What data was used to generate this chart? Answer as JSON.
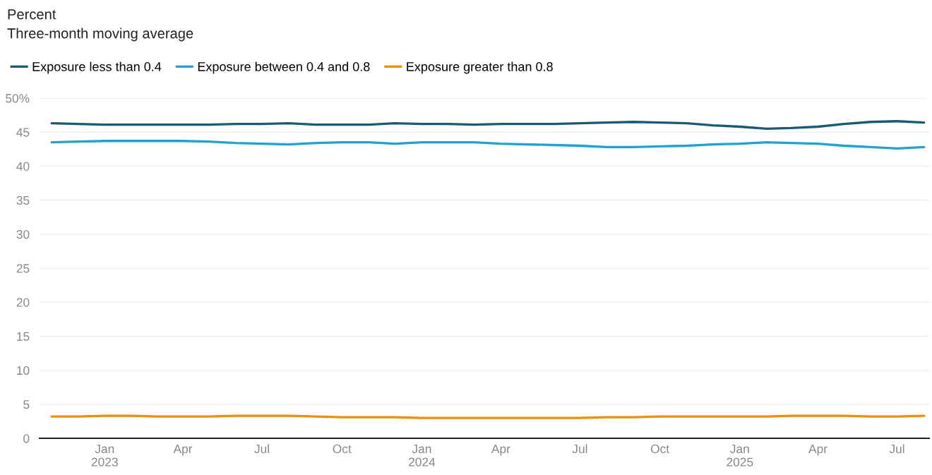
{
  "chart_data": {
    "type": "line",
    "title": "Percent",
    "subtitle": "Three-month moving average",
    "x": [
      "2022-11",
      "2022-12",
      "2023-01",
      "2023-02",
      "2023-03",
      "2023-04",
      "2023-05",
      "2023-06",
      "2023-07",
      "2023-08",
      "2023-09",
      "2023-10",
      "2023-11",
      "2023-12",
      "2024-01",
      "2024-02",
      "2024-03",
      "2024-04",
      "2024-05",
      "2024-06",
      "2024-07",
      "2024-08",
      "2024-09",
      "2024-10",
      "2024-11",
      "2024-12",
      "2025-01",
      "2025-02",
      "2025-03",
      "2025-04",
      "2025-05",
      "2025-06",
      "2025-07",
      "2025-08"
    ],
    "series": [
      {
        "name": "Exposure less than 0.4",
        "color": "#1a5a73",
        "values": [
          46.3,
          46.2,
          46.1,
          46.1,
          46.1,
          46.1,
          46.1,
          46.2,
          46.2,
          46.3,
          46.1,
          46.1,
          46.1,
          46.3,
          46.2,
          46.2,
          46.1,
          46.2,
          46.2,
          46.2,
          46.3,
          46.4,
          46.5,
          46.4,
          46.3,
          46.0,
          45.8,
          45.5,
          45.6,
          45.8,
          46.2,
          46.5,
          46.6,
          46.4
        ]
      },
      {
        "name": "Exposure between 0.4 and 0.8",
        "color": "#1fa3d1",
        "values": [
          43.5,
          43.6,
          43.7,
          43.7,
          43.7,
          43.7,
          43.6,
          43.4,
          43.3,
          43.2,
          43.4,
          43.5,
          43.5,
          43.3,
          43.5,
          43.5,
          43.5,
          43.3,
          43.2,
          43.1,
          43.0,
          42.8,
          42.8,
          42.9,
          43.0,
          43.2,
          43.3,
          43.5,
          43.4,
          43.3,
          43.0,
          42.8,
          42.6,
          42.8
        ]
      },
      {
        "name": "Exposure greater than 0.8",
        "color": "#f28c00",
        "values": [
          3.2,
          3.2,
          3.3,
          3.3,
          3.2,
          3.2,
          3.2,
          3.3,
          3.3,
          3.3,
          3.2,
          3.1,
          3.1,
          3.1,
          3.0,
          3.0,
          3.0,
          3.0,
          3.0,
          3.0,
          3.0,
          3.1,
          3.1,
          3.2,
          3.2,
          3.2,
          3.2,
          3.2,
          3.3,
          3.3,
          3.3,
          3.2,
          3.2,
          3.3
        ]
      }
    ],
    "xlim": [
      "2022-10-18",
      "2025-08-07"
    ],
    "xticks": [
      {
        "value": "2023-01",
        "label": "Jan\n2023"
      },
      {
        "value": "2023-04",
        "label": "Apr"
      },
      {
        "value": "2023-07",
        "label": "Jul"
      },
      {
        "value": "2023-10",
        "label": "Oct"
      },
      {
        "value": "2024-01",
        "label": "Jan\n2024"
      },
      {
        "value": "2024-04",
        "label": "Apr"
      },
      {
        "value": "2024-07",
        "label": "Jul"
      },
      {
        "value": "2024-10",
        "label": "Oct"
      },
      {
        "value": "2025-01",
        "label": "Jan\n2025"
      },
      {
        "value": "2025-04",
        "label": "Apr"
      },
      {
        "value": "2025-07",
        "label": "Jul"
      }
    ],
    "ylim": [
      0,
      50
    ],
    "yticks": [
      0,
      5,
      10,
      15,
      20,
      25,
      30,
      35,
      40,
      45,
      {
        "value": 50,
        "label": "50%"
      }
    ],
    "grid": "y",
    "legend": "top left",
    "marker": "none",
    "line_style": "solid"
  }
}
